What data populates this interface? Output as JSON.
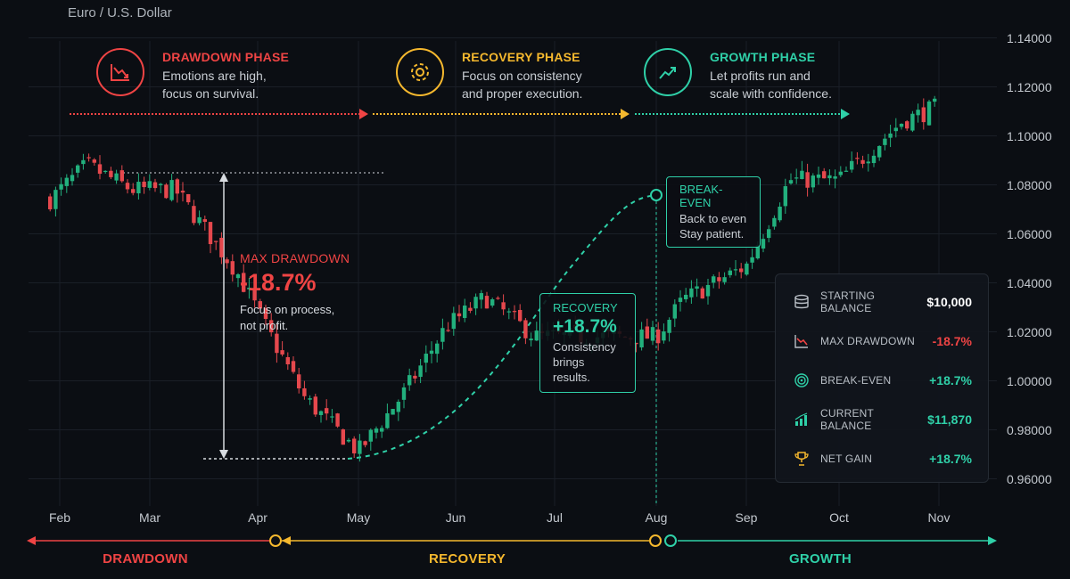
{
  "title": "Euro / U.S. Dollar",
  "colors": {
    "background": "#0b0e13",
    "grid": "#1a1f27",
    "bull": "#22b07d",
    "bear": "#e5484d",
    "drawdown": "#ef4444",
    "recovery": "#f5b82e",
    "growth": "#2fd0a8",
    "text": "#d7dbe0"
  },
  "phases": [
    {
      "title": "DRAWDOWN PHASE",
      "desc": "Emotions are high,\nfocus on survival.",
      "icon": "trend-down-icon",
      "color": "#ef4444"
    },
    {
      "title": "RECOVERY PHASE",
      "desc": "Focus on consistency\nand proper execution.",
      "icon": "gear-icon",
      "color": "#f5b82e"
    },
    {
      "title": "GROWTH PHASE",
      "desc": "Let profits run and\nscale with confidence.",
      "icon": "trend-up-icon",
      "color": "#2fd0a8"
    }
  ],
  "max_drawdown": {
    "title": "MAX DRAWDOWN",
    "value": "-18.7%",
    "desc": "Focus on process,\nnot profit."
  },
  "recovery_box": {
    "title": "RECOVERY",
    "value": "+18.7%",
    "desc": "Consistency\nbrings results."
  },
  "breakeven_box": {
    "title": "BREAK-EVEN",
    "desc": "Back to even\nStay patient."
  },
  "stats": [
    {
      "label": "STARTING BALANCE",
      "value": "$10,000",
      "icon": "coins-icon",
      "color": "#ffffff"
    },
    {
      "label": "MAX DRAWDOWN",
      "value": "-18.7%",
      "icon": "chart-down-icon",
      "color": "#ef4444"
    },
    {
      "label": "BREAK-EVEN",
      "value": "+18.7%",
      "icon": "target-icon",
      "color": "#2fd0a8"
    },
    {
      "label": "CURRENT BALANCE",
      "value": "$11,870",
      "icon": "bar-chart-icon",
      "color": "#2fd0a8"
    },
    {
      "label": "NET GAIN",
      "value": "+18.7%",
      "icon": "trophy-icon",
      "color": "#2fd0a8"
    }
  ],
  "timeline": [
    {
      "label": "DRAWDOWN",
      "color": "#ef4444"
    },
    {
      "label": "RECOVERY",
      "color": "#f5b82e"
    },
    {
      "label": "GROWTH",
      "color": "#2fd0a8"
    }
  ],
  "chart_data": {
    "type": "candlestick",
    "title": "Euro / U.S. Dollar",
    "x_ticks": [
      "Feb",
      "Mar",
      "Apr",
      "May",
      "Jun",
      "Jul",
      "Aug",
      "Sep",
      "Oct",
      "Nov"
    ],
    "y_ticks": [
      "1.14000",
      "1.12000",
      "1.10000",
      "1.08000",
      "1.06000",
      "1.04000",
      "1.02000",
      "1.00000",
      "0.98000",
      "0.96000"
    ],
    "ylim": [
      0.955,
      1.145
    ],
    "grid": true,
    "waypoints": [
      {
        "x": "Jan 28",
        "close": 1.074
      },
      {
        "x": "Feb 10",
        "close": 1.088
      },
      {
        "x": "Feb 25",
        "close": 1.078
      },
      {
        "x": "Mar 8",
        "close": 1.078
      },
      {
        "x": "Mar 25",
        "close": 1.045
      },
      {
        "x": "Apr 5",
        "close": 1.018
      },
      {
        "x": "Apr 15",
        "close": 0.993
      },
      {
        "x": "May 1",
        "close": 0.971
      },
      {
        "x": "May 15",
        "close": 0.995
      },
      {
        "x": "May 28",
        "close": 1.022
      },
      {
        "x": "Jun 10",
        "close": 1.034
      },
      {
        "x": "Jun 25",
        "close": 1.018
      },
      {
        "x": "Aug 1",
        "close": 1.018
      },
      {
        "x": "Aug 10",
        "close": 1.033
      },
      {
        "x": "Sep 1",
        "close": 1.047
      },
      {
        "x": "Sep 15",
        "close": 1.082
      },
      {
        "x": "Oct 1",
        "close": 1.082
      },
      {
        "x": "Oct 20",
        "close": 1.106
      },
      {
        "x": "Nov 5",
        "close": 1.112
      },
      {
        "x": "Nov 18",
        "close": 1.124
      }
    ],
    "annotations": [
      {
        "label": "MAX DRAWDOWN",
        "value": "-18.7%",
        "from": 1.085,
        "to": 0.97
      },
      {
        "label": "RECOVERY",
        "value": "+18.7%"
      },
      {
        "label": "BREAK-EVEN",
        "x": "Aug",
        "y": 1.076
      }
    ]
  }
}
